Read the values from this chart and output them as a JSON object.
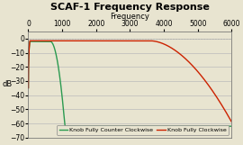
{
  "title": "SCAF-1 Frequency Response",
  "xlabel": "Frequency",
  "ylabel": "dB",
  "xlim": [
    0,
    6000
  ],
  "ylim": [
    -70,
    5
  ],
  "yticks": [
    0,
    -10,
    -20,
    -30,
    -40,
    -50,
    -60,
    -70
  ],
  "xticks": [
    0,
    1000,
    2000,
    3000,
    4000,
    5000,
    6000
  ],
  "bg_color": "#e8e4d0",
  "plot_bg_color": "#e8e4d0",
  "grid_color": "#bbbbbb",
  "legend_labels": [
    "Knob Fully Counter Clockwise",
    "Knob Fully Clockwise"
  ],
  "legend_colors": [
    "#2a9a50",
    "#cc2200"
  ],
  "title_fontsize": 8,
  "axis_fontsize": 6,
  "tick_fontsize": 5.5
}
